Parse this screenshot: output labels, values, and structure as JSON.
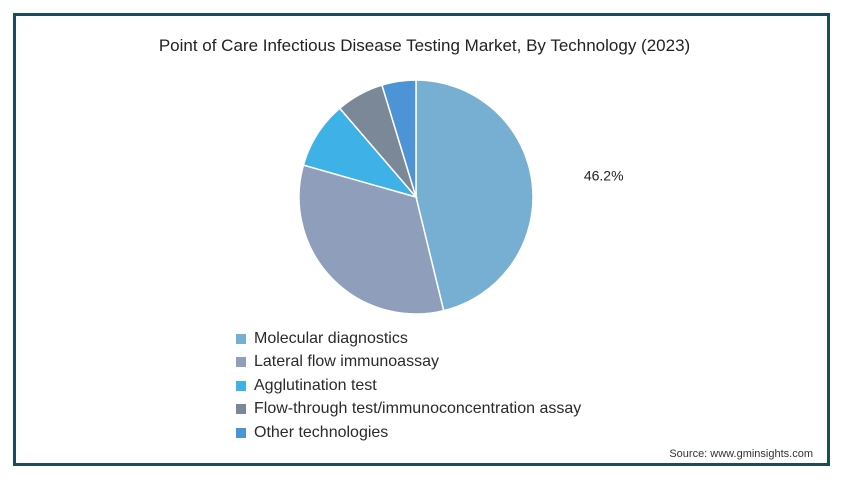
{
  "chart_data": {
    "type": "pie",
    "title": "Point of Care Infectious Disease Testing Market, By Technology (2023)",
    "start_angle_deg": 0,
    "slices": [
      {
        "label": "Molecular diagnostics",
        "value": 46.2,
        "color": "#76afd1",
        "value_label": "46.2%"
      },
      {
        "label": "Lateral flow immunoassay",
        "value": 33.2,
        "color": "#8f9fbb",
        "value_label": ""
      },
      {
        "label": "Agglutination test",
        "value": 9.3,
        "color": "#3eb2e6",
        "value_label": ""
      },
      {
        "label": "Flow-through test/immunoconcentration assay",
        "value": 6.6,
        "color": "#7a8898",
        "value_label": ""
      },
      {
        "label": "Other technologies",
        "value": 4.7,
        "color": "#4c94d6",
        "value_label": ""
      }
    ],
    "legend_position": "bottom-left"
  },
  "source": "Source: www.gminsights.com"
}
